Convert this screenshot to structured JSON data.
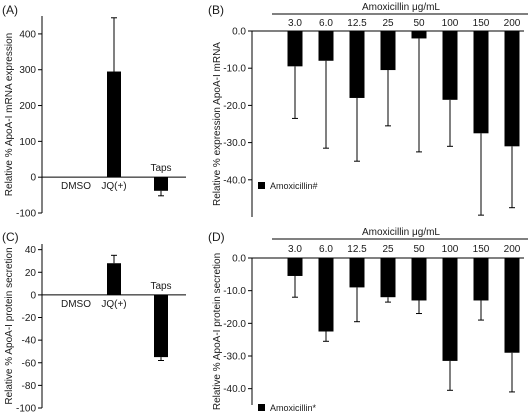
{
  "panel_labels": [
    "(A)",
    "(B)",
    "(C)",
    "(D)"
  ],
  "chart_data": [
    {
      "id": "A",
      "type": "bar",
      "ylabel": "Relative % ApoA-I mRNA expression",
      "ylim": [
        -100,
        450
      ],
      "yticks": [
        -100,
        0,
        100,
        200,
        300,
        400
      ],
      "categories": [
        "DMSO",
        "JQ(+)",
        "Taps"
      ],
      "values": [
        0,
        295,
        -38
      ],
      "error": [
        0,
        150,
        14
      ],
      "category_label_side": [
        "below",
        "below",
        "above"
      ],
      "bar_color": "#000000"
    },
    {
      "id": "B",
      "type": "bar",
      "title": "Amoxicillin μg/mL",
      "ylabel": "Relative % expression ApoA-I mRNA",
      "ylim": [
        -50,
        0
      ],
      "yticks": [
        0,
        -10,
        -20,
        -30,
        -40
      ],
      "categories": [
        "3.0",
        "6.0",
        "12.5",
        "25",
        "50",
        "100",
        "150",
        "200"
      ],
      "values": [
        -9.5,
        -8,
        -18,
        -10.5,
        -2,
        -18.5,
        -27.5,
        -31
      ],
      "error": [
        14,
        23.5,
        17,
        15,
        30.5,
        12.5,
        22,
        16.5
      ],
      "legend": {
        "label": "Amoxicillin#",
        "position": "bottom-left"
      },
      "bar_color": "#000000"
    },
    {
      "id": "C",
      "type": "bar",
      "ylabel": "Relative % ApoA-I protein secretion",
      "ylim": [
        -100,
        45
      ],
      "yticks": [
        40,
        20,
        0,
        -20,
        -40,
        -60,
        -80,
        -100
      ],
      "categories": [
        "DMSO",
        "JQ(+)",
        "Taps"
      ],
      "values": [
        0,
        28,
        -55
      ],
      "error": [
        0,
        7,
        3
      ],
      "category_label_side": [
        "below",
        "below",
        "above"
      ],
      "bar_color": "#000000"
    },
    {
      "id": "D",
      "type": "bar",
      "title": "Amoxicillin μg/mL",
      "ylabel": "Relative % ApoA-I protein secretion",
      "ylim": [
        -45,
        0
      ],
      "yticks": [
        0,
        -10,
        -20,
        -30,
        -40
      ],
      "categories": [
        "3.0",
        "6.0",
        "12.5",
        "25",
        "50",
        "100",
        "150",
        "200"
      ],
      "values": [
        -5.5,
        -22.5,
        -9,
        -12,
        -13,
        -31.5,
        -13,
        -29
      ],
      "error": [
        6.5,
        3,
        10.5,
        1.5,
        4,
        9,
        6,
        12
      ],
      "legend": {
        "label": "Amoxicillin*",
        "position": "bottom-left"
      },
      "bar_color": "#000000"
    }
  ]
}
